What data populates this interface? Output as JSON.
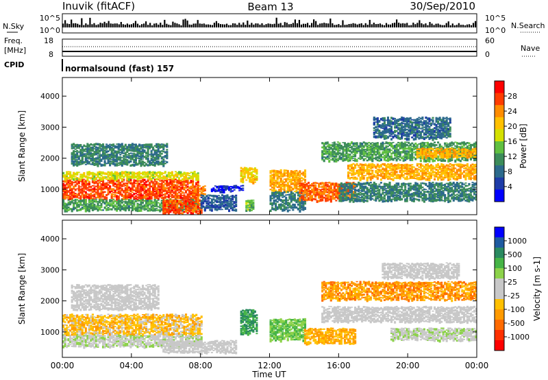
{
  "header": {
    "station": "Inuvik (fitACF)",
    "beam": "Beam 13",
    "date": "30/Sep/2010"
  },
  "top_panels": {
    "nsky_label": "N.Sky",
    "nsky_left_ticks": [
      "10^5",
      "10^0"
    ],
    "nsky_right_ticks": [
      "10^5",
      "10^0"
    ],
    "nsearch_label": "N.Search",
    "freq_label_1": "Freq.",
    "freq_label_2": "[MHz]",
    "freq_ticks": [
      "18",
      "8"
    ],
    "nave_ticks": [
      "60",
      "0"
    ],
    "nave_label": "Nave",
    "cpid_label": "CPID",
    "cpid_text": "normalsound (fast) 157"
  },
  "chart_data": [
    {
      "type": "heatmap",
      "title": "",
      "xlabel": "Time UT",
      "ylabel": "Slant Range [km]",
      "x_ticks": [
        "00:00",
        "04:00",
        "08:00",
        "12:00",
        "16:00",
        "20:00",
        "00:00"
      ],
      "y_ticks": [
        1000,
        2000,
        3000,
        4000
      ],
      "xlim": [
        0,
        24
      ],
      "ylim": [
        180,
        4600
      ],
      "colorbar_label": "Power [dB]",
      "colorbar_ticks": [
        28,
        24,
        20,
        16,
        12,
        8,
        4
      ],
      "colorbar_range": [
        0,
        32
      ],
      "colorbar_colors": [
        "#ff0000",
        "#ff3c00",
        "#ff8c00",
        "#ffc000",
        "#d4e000",
        "#60c040",
        "#3c8c5a",
        "#2c6a8c",
        "#1e3ca8",
        "#0000ff"
      ],
      "bands": [
        {
          "t0": 0.0,
          "t1": 7.8,
          "r0": 650,
          "r1": 1300,
          "value": 27
        },
        {
          "t0": 0.0,
          "t1": 7.8,
          "r0": 1300,
          "r1": 1550,
          "value": 18
        },
        {
          "t0": 0.0,
          "t1": 7.8,
          "r0": 300,
          "r1": 650,
          "value": 12
        },
        {
          "t0": 0.5,
          "t1": 6.0,
          "r0": 1750,
          "r1": 2450,
          "value": 10
        },
        {
          "t0": 5.8,
          "t1": 8.0,
          "r0": 200,
          "r1": 650,
          "value": 27
        },
        {
          "t0": 7.5,
          "t1": 8.2,
          "r0": 800,
          "r1": 1100,
          "value": 25
        },
        {
          "t0": 8.0,
          "t1": 10.0,
          "r0": 300,
          "r1": 800,
          "value": 7
        },
        {
          "t0": 8.6,
          "t1": 10.4,
          "r0": 900,
          "r1": 1100,
          "value": 3
        },
        {
          "t0": 10.3,
          "t1": 11.2,
          "r0": 1200,
          "r1": 1700,
          "value": 20
        },
        {
          "t0": 10.6,
          "t1": 11.0,
          "r0": 300,
          "r1": 650,
          "value": 14
        },
        {
          "t0": 12.0,
          "t1": 14.0,
          "r0": 900,
          "r1": 1600,
          "value": 22
        },
        {
          "t0": 12.0,
          "t1": 14.0,
          "r0": 300,
          "r1": 900,
          "value": 9
        },
        {
          "t0": 13.7,
          "t1": 17.0,
          "r0": 600,
          "r1": 1200,
          "value": 26
        },
        {
          "t0": 16.5,
          "t1": 24.0,
          "r0": 1300,
          "r1": 1800,
          "value": 22
        },
        {
          "t0": 16.0,
          "t1": 24.0,
          "r0": 600,
          "r1": 1200,
          "value": 10
        },
        {
          "t0": 15.0,
          "t1": 24.0,
          "r0": 1900,
          "r1": 2500,
          "value": 12
        },
        {
          "t0": 20.5,
          "t1": 24.0,
          "r0": 2000,
          "r1": 2300,
          "value": 22
        },
        {
          "t0": 18.0,
          "t1": 22.5,
          "r0": 2600,
          "r1": 3300,
          "value": 8
        }
      ]
    },
    {
      "type": "heatmap",
      "title": "",
      "xlabel": "Time UT",
      "ylabel": "Slant Range [km]",
      "x_ticks": [
        "00:00",
        "04:00",
        "08:00",
        "12:00",
        "16:00",
        "20:00",
        "00:00"
      ],
      "y_ticks": [
        1000,
        2000,
        3000,
        4000
      ],
      "xlim": [
        0,
        24
      ],
      "ylim": [
        180,
        4600
      ],
      "colorbar_label": "Velocity [m s-1]",
      "colorbar_ticks": [
        "1000",
        "500",
        "100",
        "25",
        "-25",
        "-100",
        "-500",
        "-1000"
      ],
      "colorbar_range": [
        -1200,
        1200
      ],
      "colorbar_colors": [
        "#0000ff",
        "#1e5aa0",
        "#2a8a60",
        "#46b446",
        "#8cd24a",
        "#c8c8c8",
        "#c8c8c8",
        "#ffc000",
        "#ff9a00",
        "#ff6a00",
        "#ff3000",
        "#ff0000"
      ],
      "bands": [
        {
          "t0": 0.0,
          "t1": 8.0,
          "r0": 500,
          "r1": 900,
          "value": 120
        },
        {
          "t0": 0.0,
          "t1": 8.0,
          "r0": 900,
          "r1": 1550,
          "value": -300
        },
        {
          "t0": 0.5,
          "t1": 5.5,
          "r0": 1700,
          "r1": 2500,
          "value": 0
        },
        {
          "t0": 5.8,
          "t1": 10.0,
          "r0": 300,
          "r1": 700,
          "value": 0
        },
        {
          "t0": 10.3,
          "t1": 11.2,
          "r0": 900,
          "r1": 1700,
          "value": 600
        },
        {
          "t0": 12.0,
          "t1": 14.0,
          "r0": 700,
          "r1": 1400,
          "value": 400
        },
        {
          "t0": 14.0,
          "t1": 17.0,
          "r0": 600,
          "r1": 1100,
          "value": -400
        },
        {
          "t0": 15.0,
          "t1": 24.0,
          "r0": 1300,
          "r1": 1800,
          "value": 0
        },
        {
          "t0": 15.0,
          "t1": 24.0,
          "r0": 2000,
          "r1": 2600,
          "value": -500
        },
        {
          "t0": 18.5,
          "t1": 23.0,
          "r0": 2700,
          "r1": 3200,
          "value": 0
        },
        {
          "t0": 19.0,
          "t1": 24.0,
          "r0": 700,
          "r1": 1100,
          "value": 120
        }
      ]
    }
  ]
}
